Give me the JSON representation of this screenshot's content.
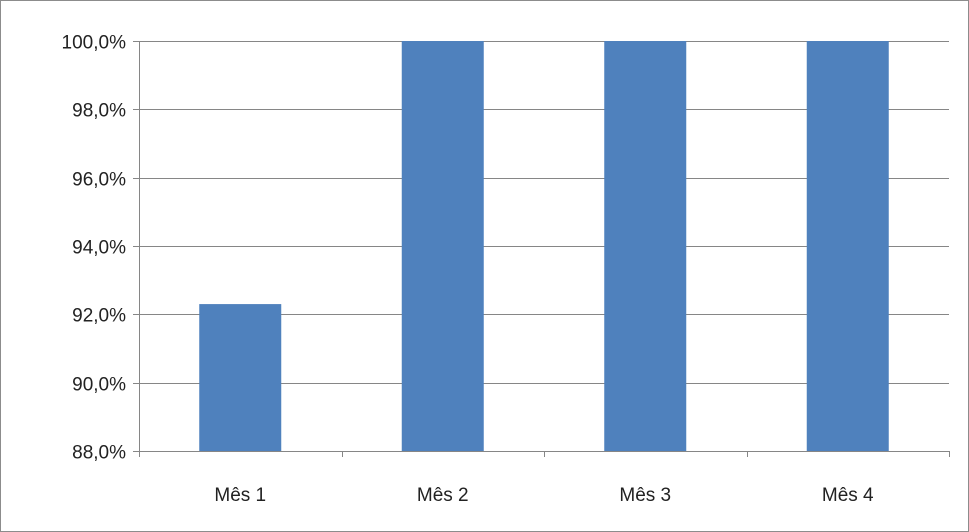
{
  "chart_data": {
    "type": "bar",
    "categories": [
      "Mês 1",
      "Mês 2",
      "Mês 3",
      "Mês 4"
    ],
    "values": [
      92.3,
      100.0,
      100.0,
      100.0
    ],
    "ylim": [
      88.0,
      100.0
    ],
    "yticks": [
      88.0,
      90.0,
      92.0,
      94.0,
      96.0,
      98.0,
      100.0
    ],
    "ytick_labels": [
      "88,0%",
      "90,0%",
      "92,0%",
      "94,0%",
      "96,0%",
      "98,0%",
      "100,0%"
    ],
    "title": "",
    "xlabel": "",
    "ylabel": "",
    "grid": true,
    "legend": "none",
    "colors": {
      "bar": "#4f81bd",
      "grid": "#868686",
      "axis": "#868686"
    }
  }
}
